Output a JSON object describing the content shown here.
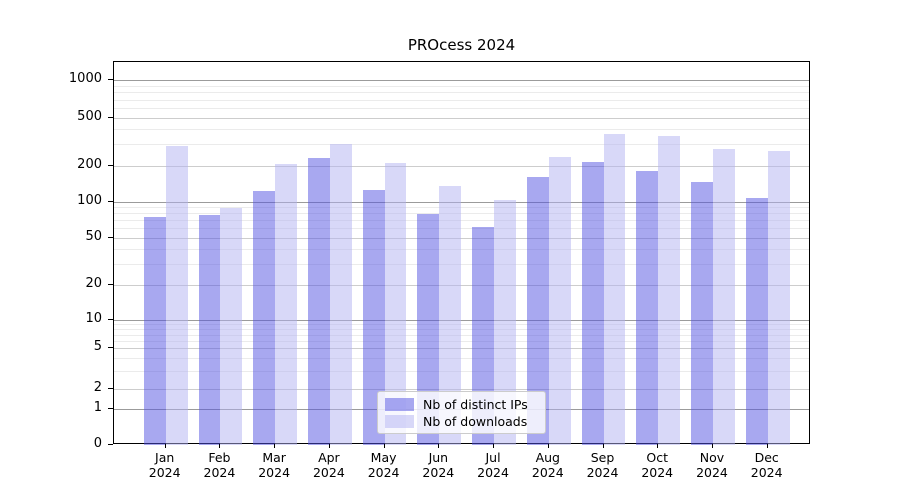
{
  "chart_data": {
    "type": "bar",
    "title": "PROcess 2024",
    "categories": [
      "Jan",
      "Feb",
      "Mar",
      "Apr",
      "May",
      "Jun",
      "Jul",
      "Aug",
      "Sep",
      "Oct",
      "Nov",
      "Dec"
    ],
    "category_year": "2024",
    "series": [
      {
        "name": "Nb of distinct IPs",
        "color": "#a8a8f0",
        "color_rgba": "rgba(81,81,225,0.5)",
        "values": [
          75,
          78,
          124,
          230,
          126,
          79,
          62,
          160,
          214,
          180,
          146,
          108
        ]
      },
      {
        "name": "Nb of downloads",
        "color": "#d8d8f8",
        "color_rgba": "rgba(177,177,241,0.5)",
        "values": [
          290,
          89,
          206,
          305,
          210,
          136,
          104,
          237,
          370,
          350,
          277,
          267
        ]
      }
    ],
    "xlabel": "",
    "ylabel": "",
    "yscale": "log-with-zero",
    "ylim": [
      0,
      1370
    ],
    "y_ticks_labeled": [
      0,
      1,
      2,
      5,
      10,
      20,
      50,
      100,
      200,
      500,
      1000
    ],
    "y_ticks_decade": [
      1,
      10,
      100,
      1000
    ],
    "y_minor_gridlines": [
      3,
      4,
      6,
      7,
      8,
      9,
      30,
      40,
      60,
      70,
      80,
      90,
      300,
      400,
      600,
      700,
      800,
      900
    ],
    "grid": "horizontal",
    "legend": {
      "position": "bottom-center-inside",
      "entries": [
        "Nb of distinct IPs",
        "Nb of downloads"
      ]
    },
    "colors": {
      "grid_major": "#9b9b9b",
      "grid_mid": "#cdcdcd",
      "grid_minor": "#ebebeb",
      "spine": "#000000",
      "text": "#000000"
    }
  }
}
